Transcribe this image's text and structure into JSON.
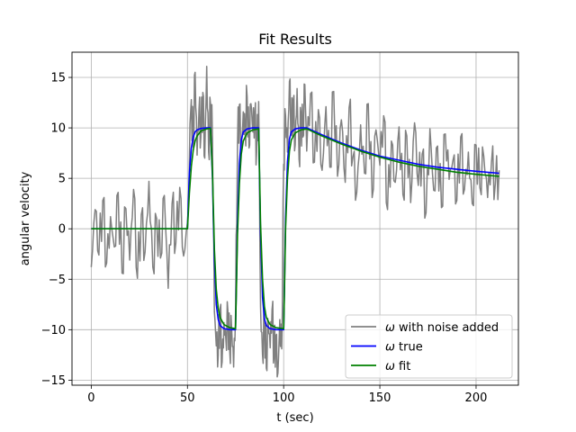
{
  "chart_data": {
    "type": "line",
    "title": "Fit Results",
    "xlabel": "t (sec)",
    "ylabel": "angular velocity",
    "xlim": [
      -10,
      222
    ],
    "ylim": [
      -15.5,
      17.5
    ],
    "x_ticks": [
      0,
      50,
      100,
      150,
      200
    ],
    "y_ticks": [
      -15,
      -10,
      -5,
      0,
      5,
      10,
      15
    ],
    "grid": true,
    "legend_position": "lower-right",
    "series": [
      {
        "name": "ω with noise added",
        "legend_symbol": "ω",
        "legend_rest": " with noise added",
        "color": "#808080",
        "noise_amplitude": 2.5,
        "x": [
          0,
          2,
          4,
          6,
          8,
          10,
          12,
          14,
          16,
          18,
          20,
          22,
          24,
          26,
          28,
          30,
          32,
          34,
          36,
          38,
          40,
          42,
          44,
          46,
          48,
          50,
          52,
          53,
          54,
          55,
          56,
          57,
          58,
          59,
          60,
          61,
          62,
          63,
          64,
          65,
          66,
          67,
          68,
          69,
          70,
          71,
          72,
          73,
          74,
          75,
          76,
          77,
          78,
          79,
          80,
          81,
          82,
          83,
          84,
          85,
          86,
          87,
          88,
          89,
          90,
          91,
          92,
          93,
          94,
          95,
          96,
          97,
          98,
          99,
          100,
          101,
          102,
          103,
          104,
          105,
          106,
          107,
          108,
          109,
          110,
          111,
          112,
          114,
          116,
          118,
          120,
          122,
          124,
          126,
          128,
          130,
          132,
          134,
          136,
          138,
          140,
          142,
          144,
          146,
          148,
          150,
          152,
          154,
          156,
          158,
          160,
          162,
          164,
          166,
          168,
          170,
          172,
          174,
          176,
          178,
          180,
          182,
          184,
          186,
          188,
          190,
          192,
          194,
          196,
          198,
          200,
          202,
          204,
          206,
          208,
          210,
          212
        ],
        "y": [
          -3.8,
          1.9,
          -2.6,
          2.8,
          -3.4,
          1.2,
          -1.8,
          3.6,
          -4.4,
          2.0,
          -3.1,
          3.9,
          -4.9,
          1.4,
          -2.3,
          4.7,
          -3.8,
          1.0,
          -2.9,
          3.3,
          -5.9,
          2.5,
          -1.4,
          4.1,
          -2.7,
          0.6,
          12.8,
          8.1,
          15.5,
          7.3,
          11.8,
          9.1,
          13.5,
          7.0,
          16.1,
          7.6,
          12.4,
          8.6,
          -8.2,
          -11.6,
          -12.5,
          -7.9,
          -13.2,
          -9.3,
          -11.0,
          -8.1,
          -12.2,
          -9.9,
          -13.7,
          -8.5,
          8.3,
          12.3,
          7.8,
          11.6,
          9.4,
          13.1,
          8.0,
          12.4,
          9.6,
          11.2,
          7.6,
          12.6,
          -7.7,
          -12.5,
          -8.6,
          -13.8,
          -9.3,
          -11.8,
          -8.0,
          -12.6,
          -10.6,
          -14.3,
          -9.0,
          -11.9,
          6.4,
          11.2,
          7.6,
          14.6,
          9.3,
          12.8,
          8.3,
          13.9,
          6.9,
          11.4,
          9.1,
          14.3,
          7.7,
          13.4,
          6.6,
          11.8,
          5.8,
          12.1,
          6.1,
          13.6,
          5.2,
          10.8,
          4.6,
          12.0,
          7.1,
          3.6,
          10.3,
          5.5,
          12.4,
          3.1,
          9.8,
          6.3,
          11.2,
          1.9,
          8.7,
          4.6,
          10.1,
          3.4,
          9.2,
          2.6,
          10.5,
          4.3,
          7.4,
          1.6,
          9.9,
          3.8,
          8.2,
          2.1,
          9.4,
          4.9,
          6.8,
          2.8,
          9.1,
          3.9,
          7.6,
          2.5,
          8.3,
          4.1,
          7.2,
          3.1,
          6.6,
          4.4,
          5.8
        ]
      },
      {
        "name": "ω true",
        "legend_symbol": "ω",
        "legend_rest": " true",
        "color": "#0000ff",
        "x": [
          0,
          50,
          51,
          52,
          53,
          54,
          55,
          57,
          60,
          62,
          63,
          63.5,
          64,
          65,
          66,
          67,
          69,
          72,
          75,
          75.5,
          76,
          77,
          78,
          79,
          81,
          84,
          87,
          87.5,
          88,
          89,
          90,
          91,
          93,
          96,
          100,
          100.5,
          101,
          102,
          103,
          104,
          106,
          109,
          112,
          120,
          130,
          140,
          150,
          160,
          170,
          180,
          190,
          200,
          212
        ],
        "y": [
          0,
          0,
          5.5,
          8.0,
          9.1,
          9.6,
          9.8,
          9.95,
          10,
          10,
          5.0,
          1.0,
          -3.0,
          -7.5,
          -9.0,
          -9.6,
          -9.9,
          -10,
          -10,
          -5.0,
          0.5,
          6.5,
          8.8,
          9.6,
          9.9,
          10,
          10,
          5.0,
          -0.5,
          -6.8,
          -8.9,
          -9.6,
          -9.9,
          -10,
          -10,
          -5.0,
          1.0,
          6.6,
          8.9,
          9.6,
          9.9,
          10,
          10,
          9.3,
          8.5,
          7.8,
          7.2,
          6.8,
          6.4,
          6.1,
          5.9,
          5.7,
          5.5
        ]
      },
      {
        "name": "ω fit",
        "legend_symbol": "ω",
        "legend_rest": " fit",
        "color": "#008000",
        "x": [
          0,
          50,
          51,
          52,
          53,
          54,
          55,
          57,
          60,
          62,
          63,
          63.5,
          64,
          65,
          66,
          67,
          69,
          72,
          75,
          75.5,
          76,
          77,
          78,
          79,
          81,
          84,
          87,
          87.5,
          88,
          89,
          90,
          91,
          93,
          96,
          100,
          100.5,
          101,
          102,
          103,
          104,
          106,
          109,
          112,
          120,
          130,
          140,
          150,
          160,
          170,
          180,
          190,
          200,
          212
        ],
        "y": [
          0,
          0,
          3.5,
          6.2,
          7.8,
          8.7,
          9.2,
          9.7,
          9.9,
          9.95,
          5.5,
          2.0,
          -2.0,
          -6.0,
          -7.9,
          -8.8,
          -9.5,
          -9.8,
          -9.9,
          -5.5,
          -0.5,
          4.5,
          7.4,
          8.7,
          9.5,
          9.8,
          9.9,
          5.5,
          0.5,
          -5.0,
          -7.7,
          -8.8,
          -9.5,
          -9.8,
          -9.9,
          -5.5,
          0.0,
          5.0,
          7.7,
          8.8,
          9.5,
          9.8,
          9.9,
          9.2,
          8.4,
          7.7,
          7.1,
          6.6,
          6.2,
          5.9,
          5.6,
          5.4,
          5.2
        ]
      }
    ]
  }
}
